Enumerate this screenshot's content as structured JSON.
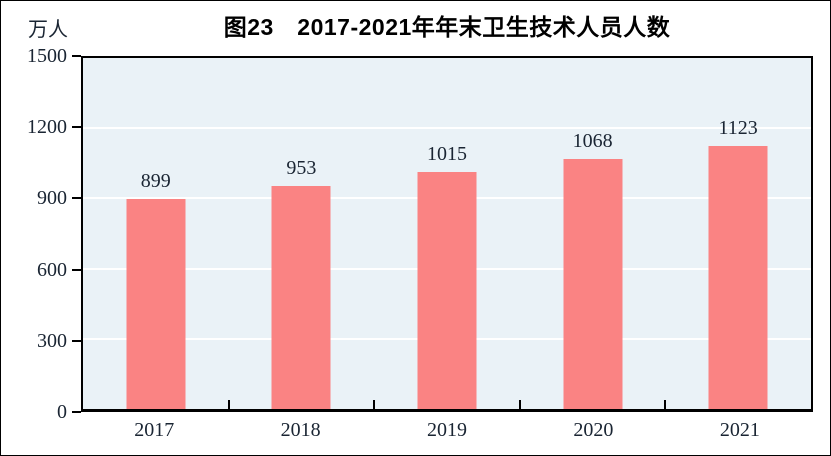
{
  "chart_data": {
    "type": "bar",
    "title": "图23　2017-2021年年末卫生技术人员人数",
    "unit": "万人",
    "categories": [
      "2017",
      "2018",
      "2019",
      "2020",
      "2021"
    ],
    "values": [
      899,
      953,
      1015,
      1068,
      1123
    ],
    "value_labels": [
      "899",
      "953",
      "1015",
      "1068",
      "1123"
    ],
    "ylim": [
      0,
      1500
    ],
    "yticks": [
      0,
      300,
      600,
      900,
      1200,
      1500
    ],
    "legend": "none",
    "grid": "horizontal-white-lines-at-ticks",
    "colors": {
      "bar": "#FA8383",
      "plot_background": "#EAF2F7",
      "gridline": "#FFFFFF",
      "axis": "#000000",
      "label_text": "#1A2533",
      "title_text": "#000000"
    }
  }
}
